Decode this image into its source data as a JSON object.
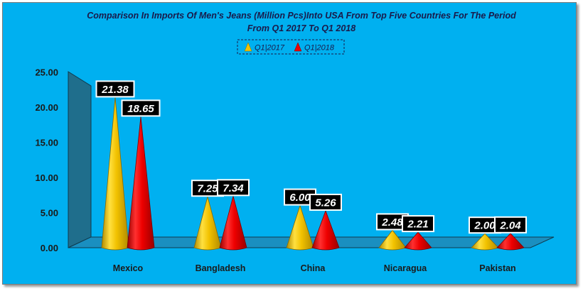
{
  "chart_data": {
    "type": "bar",
    "bar_shape": "cone",
    "title": "Comparison In Imports Of Men's Jeans (Million Pcs)Into USA From Top Five Countries For The Period From Q1 2017 To Q1 2018",
    "title_lines": [
      "Comparison In Imports Of Men's Jeans (Million Pcs)Into USA From Top Five Countries For The Period",
      "From Q1 2017 To Q1 2018"
    ],
    "categories": [
      "Mexico",
      "Bangladesh",
      "China",
      "Nicaragua",
      "Pakistan"
    ],
    "series": [
      {
        "name": "Q1|2017",
        "values": [
          21.38,
          7.25,
          6.0,
          2.48,
          2.0
        ],
        "labels": [
          "21.38",
          "7.25",
          "6.00",
          "2.48",
          "2.00"
        ],
        "color": "#f2c200"
      },
      {
        "name": "Q1|2018",
        "values": [
          18.65,
          7.34,
          5.26,
          2.21,
          2.04
        ],
        "labels": [
          "18.65",
          "7.34",
          "5.26",
          "2.21",
          "2.04"
        ],
        "color": "#ee0000"
      }
    ],
    "xlabel": "",
    "ylabel": "",
    "ylim": [
      0,
      25
    ],
    "yticks": [
      "0.00",
      "5.00",
      "10.00",
      "15.00",
      "20.00",
      "25.00"
    ],
    "grid": false,
    "legend_position": "top-center",
    "colors": {
      "background": "#00b0f0",
      "wall": "#1f6e8c",
      "floor": "#1a8fc0"
    }
  }
}
